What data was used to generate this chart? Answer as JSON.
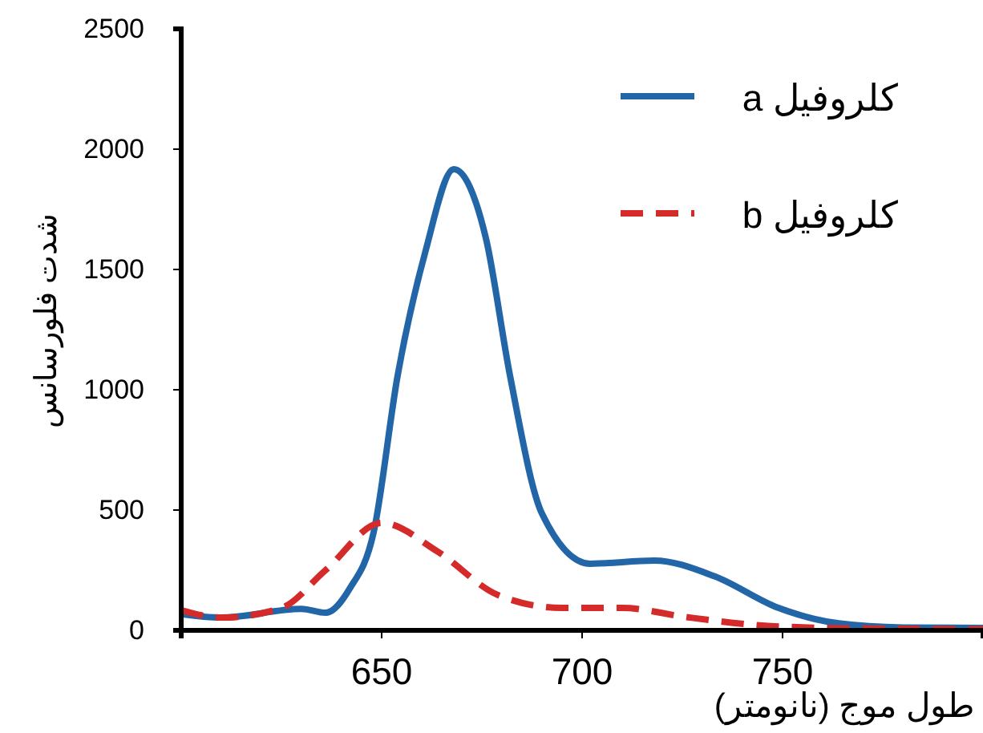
{
  "chart_data": {
    "type": "line",
    "xlabel": "طول موج (نانومتر)",
    "ylabel": "شدت فلورسانس",
    "xlim": [
      600,
      800
    ],
    "xticks": [
      650,
      700,
      750
    ],
    "ylim": [
      0,
      2500
    ],
    "yticks": [
      0,
      500,
      1000,
      1500,
      2000,
      2500
    ],
    "grid": false,
    "legend": "top right",
    "marker": "none",
    "series": [
      {
        "name": "کلروفیل a",
        "color": "#2266a8",
        "line_style": "solid",
        "x": [
          600,
          610,
          630,
          636,
          642,
          648,
          654,
          661,
          668,
          676,
          682,
          690,
          702,
          718,
          733,
          749,
          764,
          780,
          800
        ],
        "values": [
          67,
          53,
          89,
          73,
          173,
          407,
          1060,
          1580,
          1917,
          1630,
          1060,
          485,
          277,
          290,
          225,
          93,
          29,
          12,
          10
        ]
      },
      {
        "name": "کلروفیل b",
        "color": "#d42a2a",
        "line_style": "dashed",
        "x": [
          600,
          610,
          625,
          636,
          650,
          664,
          679,
          695,
          710,
          726,
          749,
          770,
          800
        ],
        "values": [
          84,
          53,
          93,
          250,
          447,
          327,
          147,
          93,
          93,
          55,
          16,
          8,
          5
        ]
      }
    ]
  }
}
